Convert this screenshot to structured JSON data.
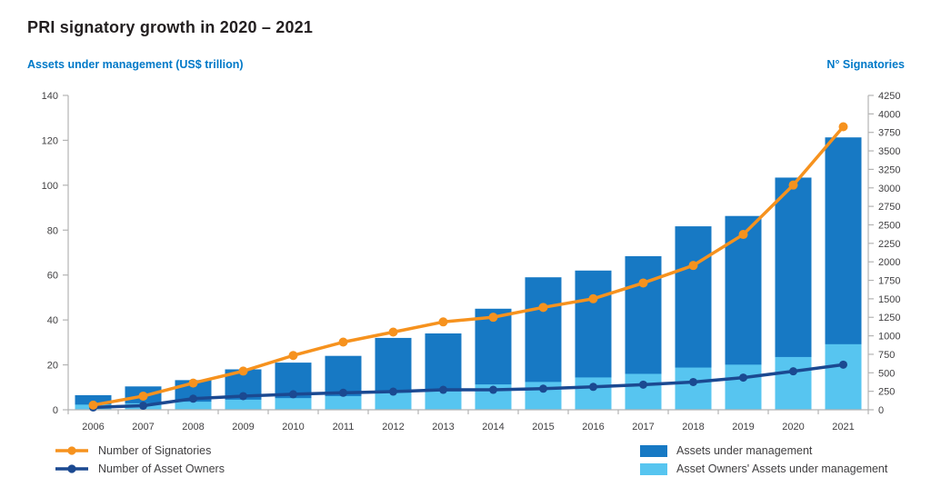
{
  "title": "PRI signatory growth in 2020 – 2021",
  "colors": {
    "accent_blue": "#0079c8",
    "bar_blue": "#1779c4",
    "bar_light_blue": "#57c5f0",
    "line_orange": "#f6921e",
    "line_navy": "#1b4991",
    "axis_gray": "#b3b3b3",
    "tick_text": "#414042",
    "title_text": "#231f20"
  },
  "legend": {
    "signatories": "Number of Signatories",
    "asset_owners": "Number of Asset Owners",
    "aum": "Assets under management",
    "ao_aum": "Asset Owners' Assets under management"
  },
  "chart_data": {
    "type": "combo-bar-line",
    "categories": [
      "2006",
      "2007",
      "2008",
      "2009",
      "2010",
      "2011",
      "2012",
      "2013",
      "2014",
      "2015",
      "2016",
      "2017",
      "2018",
      "2019",
      "2020",
      "2021"
    ],
    "left_axis": {
      "label": "Assets under management (US$ trillion)",
      "ticks": [
        0,
        20,
        40,
        60,
        80,
        100,
        120,
        140
      ],
      "max": 140
    },
    "right_axis": {
      "label": "N° Signatories",
      "ticks": [
        0,
        250,
        500,
        750,
        1000,
        1250,
        1500,
        1750,
        2000,
        2250,
        2500,
        2750,
        3000,
        3250,
        3500,
        3750,
        4000,
        4250
      ],
      "max": 4250
    },
    "series": [
      {
        "name": "Assets under management",
        "type": "bar",
        "axis": "left",
        "color": "#1779c4",
        "values": [
          6.5,
          10.4,
          13.2,
          18.0,
          21.0,
          24.0,
          32.0,
          34.0,
          45.0,
          59.0,
          62.0,
          68.4,
          81.7,
          86.3,
          103.4,
          121.3
        ]
      },
      {
        "name": "Asset Owners' Assets under management",
        "type": "bar",
        "axis": "left",
        "color": "#57c5f0",
        "values": [
          2.3,
          2.9,
          3.6,
          4.5,
          5.2,
          6.1,
          7.6,
          8.2,
          11.3,
          12.4,
          14.4,
          16.0,
          18.8,
          20.1,
          23.5,
          29.2
        ]
      },
      {
        "name": "Number of Signatories",
        "type": "line",
        "axis": "right",
        "color": "#f6921e",
        "values": [
          63,
          185,
          361,
          523,
          734,
          915,
          1050,
          1188,
          1251,
          1384,
          1501,
          1714,
          1951,
          2370,
          3038,
          3826
        ]
      },
      {
        "name": "Number of Asset Owners",
        "type": "line",
        "axis": "right",
        "color": "#1b4991",
        "values": [
          32,
          55,
          150,
          185,
          210,
          230,
          245,
          270,
          270,
          285,
          310,
          340,
          375,
          435,
          520,
          610
        ]
      }
    ],
    "layout": {
      "grid": false,
      "legend_position": "bottom"
    }
  }
}
